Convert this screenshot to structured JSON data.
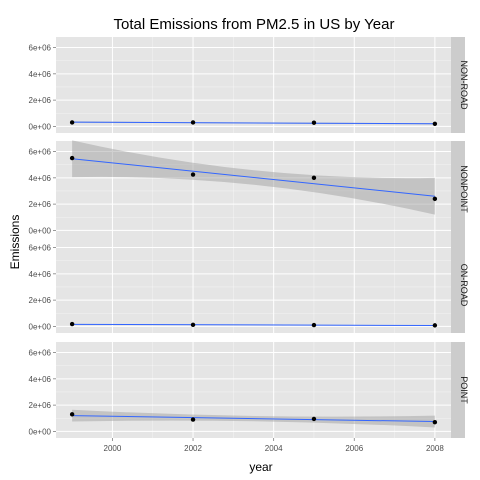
{
  "chart_data": {
    "type": "scatter",
    "title": "Total Emissions from PM2.5 in US by Year",
    "xlabel": "year",
    "ylabel": "Emissions",
    "xlim": [
      1998.6,
      2008.4
    ],
    "x_ticks": [
      2000,
      2002,
      2004,
      2006,
      2008
    ],
    "x_tick_labels": [
      "2000",
      "2002",
      "2004",
      "2006",
      "2008"
    ],
    "ylim": [
      -500000,
      6800000
    ],
    "y_ticks": [
      0,
      2000000,
      4000000,
      6000000
    ],
    "y_tick_labels": [
      "0e+00",
      "2e+06",
      "4e+06",
      "6e+06"
    ],
    "grid": true,
    "facet_layout": "rows",
    "smoother": "linear regression with confidence band",
    "colors": {
      "panel_bg": "#e5e5e5",
      "grid": "#ffffff",
      "strip_bg": "#cccccc",
      "point": "#000000",
      "line": "#3366ff",
      "band": "#999999"
    },
    "facets": [
      {
        "label": "NON-ROAD",
        "points": [
          {
            "x": 1999,
            "y": 300000
          },
          {
            "x": 2002,
            "y": 300000
          },
          {
            "x": 2005,
            "y": 280000
          },
          {
            "x": 2008,
            "y": 200000
          }
        ],
        "fit": [
          {
            "x": 1999,
            "y": 330000
          },
          {
            "x": 2008,
            "y": 200000
          }
        ],
        "band_half_width": [
          50000,
          40000,
          50000
        ]
      },
      {
        "label": "NONPOINT",
        "points": [
          {
            "x": 1999,
            "y": 5500000
          },
          {
            "x": 2002,
            "y": 4250000
          },
          {
            "x": 2005,
            "y": 4000000
          },
          {
            "x": 2008,
            "y": 2400000
          }
        ],
        "fit": [
          {
            "x": 1999,
            "y": 5450000
          },
          {
            "x": 2008,
            "y": 2600000
          }
        ],
        "band_half_width": [
          1400000,
          550000,
          1400000
        ]
      },
      {
        "label": "ON-ROAD",
        "points": [
          {
            "x": 1999,
            "y": 180000
          },
          {
            "x": 2002,
            "y": 120000
          },
          {
            "x": 2005,
            "y": 100000
          },
          {
            "x": 2008,
            "y": 80000
          }
        ],
        "fit": [
          {
            "x": 1999,
            "y": 160000
          },
          {
            "x": 2008,
            "y": 70000
          }
        ],
        "band_half_width": [
          30000,
          20000,
          30000
        ]
      },
      {
        "label": "POINT",
        "points": [
          {
            "x": 1999,
            "y": 1300000
          },
          {
            "x": 2002,
            "y": 900000
          },
          {
            "x": 2005,
            "y": 950000
          },
          {
            "x": 2008,
            "y": 700000
          }
        ],
        "fit": [
          {
            "x": 1999,
            "y": 1200000
          },
          {
            "x": 2008,
            "y": 750000
          }
        ],
        "band_half_width": [
          450000,
          200000,
          450000
        ]
      }
    ]
  }
}
